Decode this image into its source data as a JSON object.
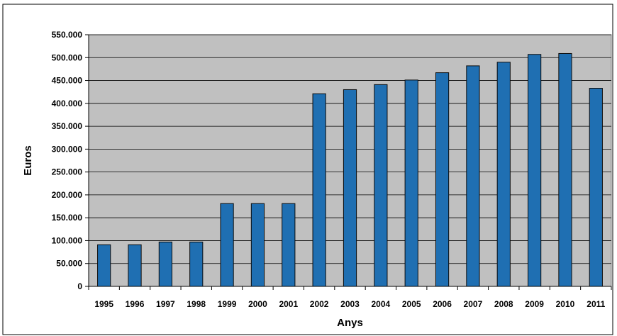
{
  "chart_data": {
    "type": "bar",
    "title": "",
    "xlabel": "Anys",
    "ylabel": "Euros",
    "categories": [
      "1995",
      "1996",
      "1997",
      "1998",
      "1999",
      "2000",
      "2001",
      "2002",
      "2003",
      "2004",
      "2005",
      "2006",
      "2007",
      "2008",
      "2009",
      "2010",
      "2011"
    ],
    "series": [
      {
        "values": [
          91000,
          91000,
          97000,
          97000,
          181000,
          181000,
          181000,
          421000,
          430000,
          441000,
          451000,
          467000,
          482000,
          490000,
          507000,
          509000,
          433000
        ]
      }
    ],
    "ylim": [
      0,
      550000
    ],
    "yticks": [
      0,
      50000,
      100000,
      150000,
      200000,
      250000,
      300000,
      350000,
      400000,
      450000,
      500000,
      550000
    ],
    "ytick_labels": [
      "0",
      "50.000",
      "100.000",
      "150.000",
      "200.000",
      "250.000",
      "300.000",
      "350.000",
      "400.000",
      "450.000",
      "500.000",
      "550.000"
    ],
    "grid": "horizontal",
    "legend": "none",
    "colors": {
      "bar": "#1f6fb2",
      "bar_edge": "#0b0b0b",
      "plot_background": "#c0c0c0",
      "gridline": "#000000"
    }
  }
}
